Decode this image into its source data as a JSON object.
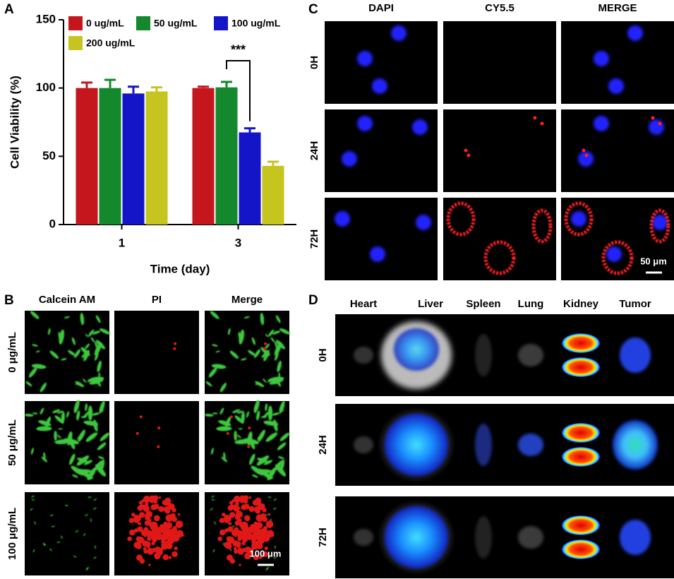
{
  "chart_data": {
    "type": "bar",
    "panel_label": "A",
    "categories": [
      "1",
      "3"
    ],
    "series": [
      {
        "name": "0 ug/mL",
        "color": "#c4161c",
        "values": [
          100,
          100
        ],
        "errors": [
          4,
          1
        ]
      },
      {
        "name": "50 ug/mL",
        "color": "#13882c",
        "values": [
          100,
          100.5
        ],
        "errors": [
          6,
          4
        ]
      },
      {
        "name": "100 ug/mL",
        "color": "#1414c8",
        "values": [
          96,
          67.5
        ],
        "errors": [
          5,
          3
        ]
      },
      {
        "name": "200 ug/mL",
        "color": "#c6c41e",
        "values": [
          97.5,
          43
        ],
        "errors": [
          3,
          3
        ]
      }
    ],
    "ylim": [
      0,
      150
    ],
    "yticks": [
      0,
      50,
      100,
      150
    ],
    "ylabel": "Cell Viability (%)",
    "xlabel": "Time (day)",
    "annotation": "***"
  },
  "panel_b": {
    "label": "B",
    "columns": [
      "Calcein AM",
      "PI",
      "Merge"
    ],
    "rows": [
      "0 μg/mL",
      "50 μg/mL",
      "100 μg/mL"
    ],
    "scale_bar": "100 μm"
  },
  "panel_c": {
    "label": "C",
    "columns": [
      "DAPI",
      "CY5.5",
      "MERGE"
    ],
    "rows": [
      "0H",
      "24H",
      "72H"
    ],
    "scale_bar": "50 μm"
  },
  "panel_d": {
    "label": "D",
    "columns": [
      "Heart",
      "Liver",
      "Spleen",
      "Lung",
      "Kidney",
      "Tumor"
    ],
    "rows": [
      "0H",
      "24H",
      "72H"
    ]
  }
}
